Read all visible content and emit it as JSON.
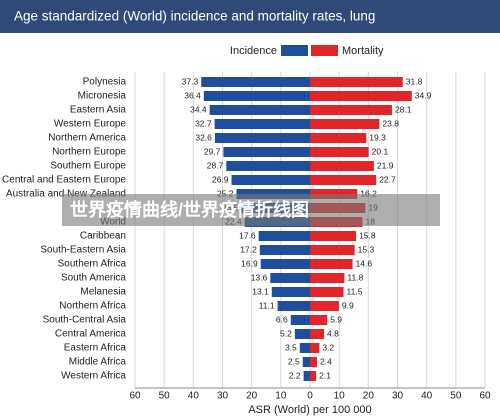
{
  "chart_data": {
    "type": "butterfly",
    "title": "Age standardized (World) incidence and mortality rates, lung",
    "x_label": "ASR (World) per 100 000",
    "categories": [
      "Polynesia",
      "Micronesia",
      "Eastern Asia",
      "Western Europe",
      "Northern America",
      "Northern Europe",
      "Southern Europe",
      "Central and Eastern Europe",
      "Australia and New Zealand",
      null,
      "World",
      "Caribbean",
      "South-Eastern Asia",
      "Southern Africa",
      "South America",
      "Melanesia",
      "Northern Africa",
      "South-Central Asia",
      "Central America",
      "Eastern Africa",
      "Middle Africa",
      "Western Africa"
    ],
    "series": [
      {
        "name": "Incidence",
        "color": "#1f4e9c",
        "values": [
          37.3,
          36.4,
          34.4,
          32.7,
          32.6,
          29.7,
          28.7,
          26.9,
          25.2,
          23.5,
          22.4,
          17.6,
          17.2,
          16.9,
          13.6,
          13.1,
          11.1,
          6.6,
          5.2,
          3.5,
          2.5,
          2.2
        ]
      },
      {
        "name": "Mortality",
        "color": "#e0262b",
        "values": [
          31.8,
          34.9,
          28.1,
          23.8,
          19.3,
          20.1,
          21.9,
          22.7,
          16.2,
          19.0,
          18.0,
          15.8,
          15.3,
          14.6,
          11.8,
          11.5,
          9.9,
          5.9,
          4.8,
          3.2,
          2.4,
          2.1
        ]
      }
    ],
    "xlim": [
      0,
      60
    ],
    "xticks": [
      0,
      10,
      20,
      30,
      40,
      50,
      60
    ],
    "grid": true,
    "watermark": "世界疫情曲线/世界疫情折线图"
  }
}
